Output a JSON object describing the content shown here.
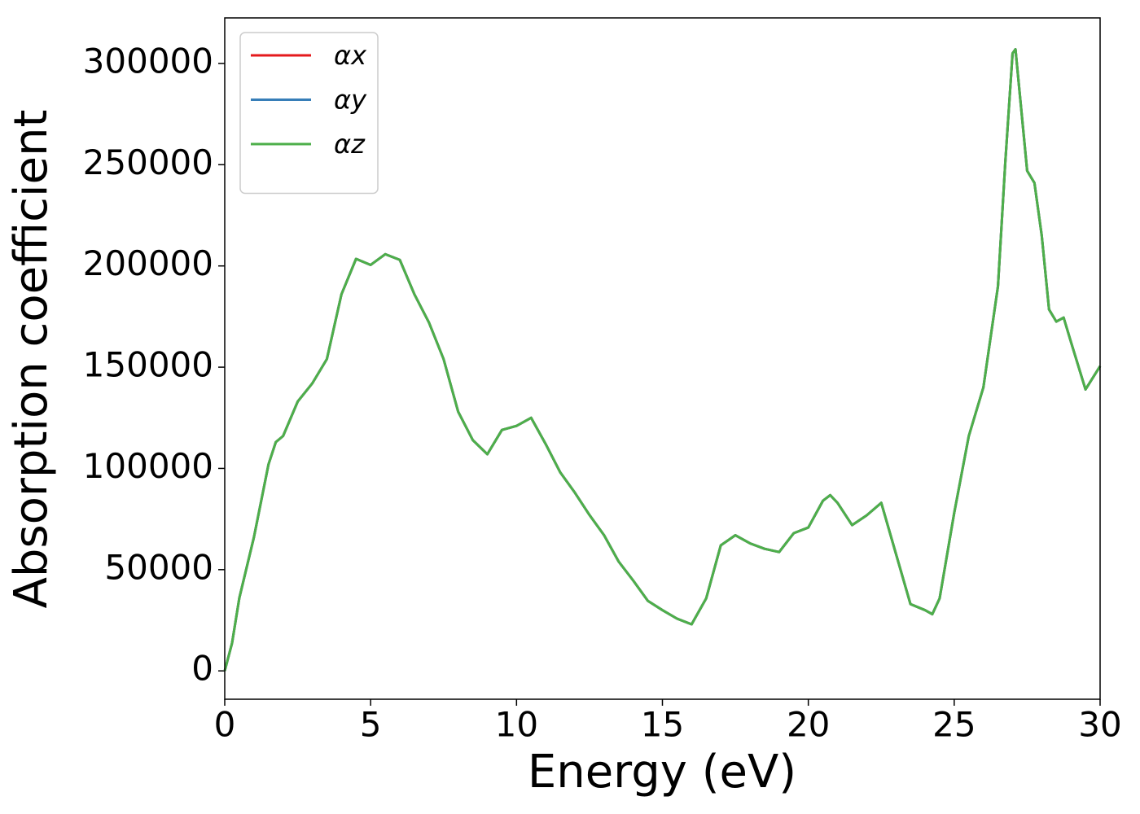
{
  "chart_data": {
    "type": "line",
    "xlabel": "Energy (eV)",
    "ylabel": "Absorption coefficient",
    "x": [
      0,
      0.25,
      0.5,
      1.0,
      1.5,
      1.75,
      2.0,
      2.5,
      3.0,
      3.5,
      4.0,
      4.5,
      5.0,
      5.5,
      6.0,
      6.5,
      7.0,
      7.5,
      8.0,
      8.5,
      9.0,
      9.5,
      10.0,
      10.5,
      11.0,
      11.5,
      12.0,
      12.5,
      13.0,
      13.5,
      14.0,
      14.5,
      15.0,
      15.5,
      16.0,
      16.5,
      17.0,
      17.5,
      18.0,
      18.5,
      19.0,
      19.5,
      20.0,
      20.5,
      20.75,
      21.0,
      21.5,
      22.0,
      22.5,
      23.0,
      23.5,
      24.0,
      24.25,
      24.5,
      25.0,
      25.5,
      26.0,
      26.5,
      26.75,
      27.0,
      27.1,
      27.5,
      27.75,
      28.0,
      28.25,
      28.5,
      28.75,
      29.0,
      29.5,
      30.0
    ],
    "series": [
      {
        "name": "αx",
        "color": "#e41a1c",
        "values": [
          0,
          13700,
          36000,
          66000,
          102000,
          113000,
          116000,
          133000,
          142000,
          154000,
          186000,
          203500,
          200500,
          205800,
          203000,
          186000,
          172000,
          154000,
          128000,
          114000,
          107000,
          119000,
          121000,
          125000,
          112000,
          98000,
          88000,
          77000,
          67000,
          54000,
          44600,
          34600,
          30000,
          25800,
          23000,
          35800,
          62000,
          67000,
          63000,
          60300,
          58700,
          68000,
          70800,
          84000,
          86800,
          83000,
          72000,
          76800,
          83000,
          58000,
          33000,
          30000,
          28000,
          35800,
          78000,
          116000,
          140000,
          190000,
          251000,
          305000,
          307000,
          247000,
          241000,
          215000,
          178500,
          172500,
          174500,
          162500,
          139000,
          150500
        ]
      },
      {
        "name": "αy",
        "color": "#377eb8",
        "values": [
          0,
          13700,
          36000,
          66000,
          102000,
          113000,
          116000,
          133000,
          142000,
          154000,
          186000,
          203500,
          200500,
          205800,
          203000,
          186000,
          172000,
          154000,
          128000,
          114000,
          107000,
          119000,
          121000,
          125000,
          112000,
          98000,
          88000,
          77000,
          67000,
          54000,
          44600,
          34600,
          30000,
          25800,
          23000,
          35800,
          62000,
          67000,
          63000,
          60300,
          58700,
          68000,
          70800,
          84000,
          86800,
          83000,
          72000,
          76800,
          83000,
          58000,
          33000,
          30000,
          28000,
          35800,
          78000,
          116000,
          140000,
          190000,
          251000,
          305000,
          307000,
          247000,
          241000,
          215000,
          178500,
          172500,
          174500,
          162500,
          139000,
          150500
        ]
      },
      {
        "name": "αz",
        "color": "#4daf4a",
        "values": [
          0,
          13700,
          36000,
          66000,
          102000,
          113000,
          116000,
          133000,
          142000,
          154000,
          186000,
          203500,
          200500,
          205800,
          203000,
          186000,
          172000,
          154000,
          128000,
          114000,
          107000,
          119000,
          121000,
          125000,
          112000,
          98000,
          88000,
          77000,
          67000,
          54000,
          44600,
          34600,
          30000,
          25800,
          23000,
          35800,
          62000,
          67000,
          63000,
          60300,
          58700,
          68000,
          70800,
          84000,
          86800,
          83000,
          72000,
          76800,
          83000,
          58000,
          33000,
          30000,
          28000,
          35800,
          78000,
          116000,
          140000,
          190000,
          251000,
          305000,
          307000,
          247000,
          241000,
          215000,
          178500,
          172500,
          174500,
          162500,
          139000,
          150500
        ]
      }
    ],
    "xlim": [
      0,
      30
    ],
    "xticks": [
      0,
      5,
      10,
      15,
      20,
      25,
      30
    ],
    "ylim": [
      -14000,
      322500
    ],
    "yticks": [
      0,
      50000,
      100000,
      150000,
      200000,
      250000,
      300000
    ],
    "grid": false,
    "legend": "upper left"
  }
}
